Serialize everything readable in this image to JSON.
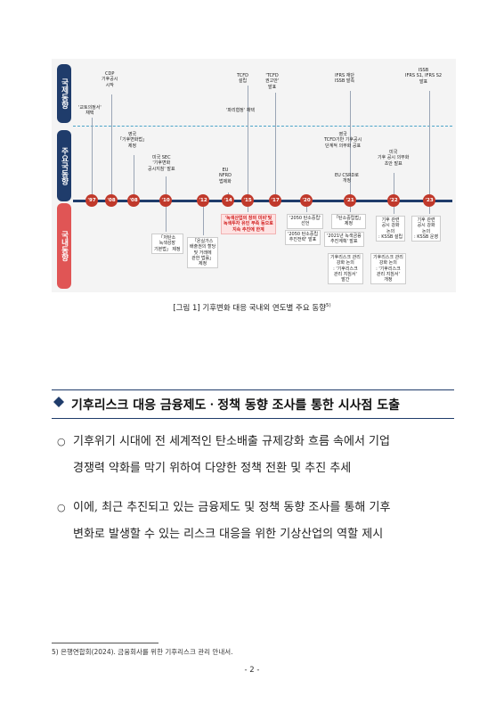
{
  "figure": {
    "bands": {
      "international": "국제동향",
      "major": "주요국동향",
      "domestic": "국내동향"
    },
    "years": [
      "'97",
      "'08",
      "'08",
      "'10",
      "'12",
      "'14",
      "'15",
      "'17",
      "'20",
      "'21",
      "'22",
      "'23"
    ],
    "international": [
      "'교토의정서'\n채택",
      "CDP\n기후공시\n시작",
      "TCFD\n설립",
      "'파리협정' 채택",
      "'TCFD\n권고안'\n발표",
      "IFRS 재단\nISSB 발족",
      "ISSB\nIFRS S1, IFRS S2\n발표"
    ],
    "major": [
      "영국\n「기후변화법」\n제정",
      "미국 SEC\n'기후변화\n공시지침' 발표",
      "EU\nNFRD\n법제화",
      "영국\nTCFD기반 기후공시\n단계적 의무화 공표",
      "EU CSRD로\n개정",
      "미국\n기후 공시 의무화\n초안 발표"
    ],
    "domestic": [
      "「저탄소\n녹색성장\n기본법」 제정",
      "「온실가스\n배출권의 할당\n및 거래에\n관한 법률」\n제정",
      "'녹색산업의 창의 미비'및\n녹색투자 유인 부족 등으로\n지속 추진에 한계",
      "'2050 탄소중립'\n선언",
      "'2050 탄소중립\n추진전략' 발표",
      "「탄소중립법」\n제정",
      "'2021년 녹색금융\n추진계획' 발표",
      "기후리스크 관리\n강화 논의\n: '기후리스크\n관리 지침서'\n발간",
      "기후 관련\n공시 강화\n논의\n: KSSB 설립",
      "기후리스크 관리\n강화 논의\n: '기후리스크\n관리 지침서'\n개정",
      "기후 관련\n공시 강화\n논의\n: KSSB 운영"
    ]
  },
  "caption": "[그림 1] 기후변화 대응 국내외 연도별 주요 동향",
  "caption_ref": "5)",
  "section": {
    "title": "기후리스크 대응 금융제도ㆍ정책 동향 조사를 통한 시사점 도출",
    "bullet_symbol": "○",
    "paragraphs": [
      [
        "기후위기 시대에 전 세계적인 탄소배출 규제강화 흐름 속에서 기업",
        "경쟁력 약화를 막기 위하여 다양한 정책 전환 및 추진 추세"
      ],
      [
        "이에, 최근 추진되고 있는 금융제도 및 정책 동향 조사를 통해 기후",
        "변화로 발생할 수 있는 리스크 대응을 위한 기상산업의 역할 제시"
      ]
    ]
  },
  "footnote": "5) 은행연합회(2024). 금융회사를 위한 기후리스크 관리 안내서.",
  "page_number": "- 2 -",
  "colors": {
    "navy": "#1f3c6b",
    "red": "#e05555",
    "year_dot": "#c0392b"
  }
}
